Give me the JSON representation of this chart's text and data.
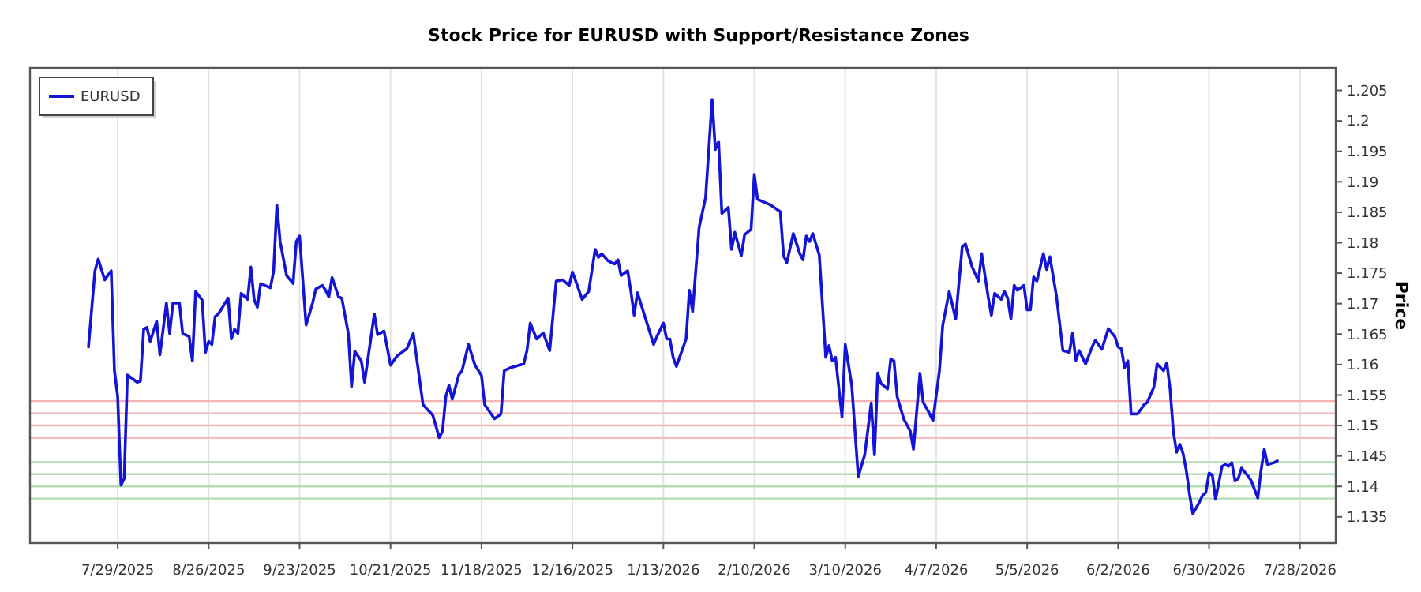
{
  "chart_data": {
    "type": "line",
    "title": "Stock Price for EURUSD with Support/Resistance Zones",
    "ylabel": "Price",
    "x": [
      "2025-07-20",
      "2025-07-22",
      "2025-07-23",
      "2025-07-25",
      "2025-07-27",
      "2025-07-28",
      "2025-07-29",
      "2025-07-30",
      "2025-07-31",
      "2025-08-01",
      "2025-08-04",
      "2025-08-05",
      "2025-08-06",
      "2025-08-07",
      "2025-08-08",
      "2025-08-10",
      "2025-08-11",
      "2025-08-13",
      "2025-08-14",
      "2025-08-15",
      "2025-08-17",
      "2025-08-18",
      "2025-08-20",
      "2025-08-21",
      "2025-08-22",
      "2025-08-24",
      "2025-08-25",
      "2025-08-26",
      "2025-08-27",
      "2025-08-28",
      "2025-08-29",
      "2025-09-01",
      "2025-09-02",
      "2025-09-03",
      "2025-09-04",
      "2025-09-05",
      "2025-09-07",
      "2025-09-08",
      "2025-09-09",
      "2025-09-10",
      "2025-09-11",
      "2025-09-14",
      "2025-09-15",
      "2025-09-16",
      "2025-09-17",
      "2025-09-19",
      "2025-09-21",
      "2025-09-22",
      "2025-09-23",
      "2025-09-25",
      "2025-09-27",
      "2025-09-28",
      "2025-09-30",
      "2025-10-01",
      "2025-10-02",
      "2025-10-03",
      "2025-10-05",
      "2025-10-06",
      "2025-10-08",
      "2025-10-09",
      "2025-10-10",
      "2025-10-12",
      "2025-10-13",
      "2025-10-16",
      "2025-10-17",
      "2025-10-19",
      "2025-10-21",
      "2025-10-23",
      "2025-10-26",
      "2025-10-28",
      "2025-10-31",
      "2025-11-03",
      "2025-11-05",
      "2025-11-06",
      "2025-11-07",
      "2025-11-08",
      "2025-11-09",
      "2025-11-11",
      "2025-11-12",
      "2025-11-14",
      "2025-11-15",
      "2025-11-16",
      "2025-11-18",
      "2025-11-19",
      "2025-11-22",
      "2025-11-24",
      "2025-11-25",
      "2025-11-27",
      "2025-12-01",
      "2025-12-02",
      "2025-12-03",
      "2025-12-05",
      "2025-12-07",
      "2025-12-09",
      "2025-12-11",
      "2025-12-13",
      "2025-12-15",
      "2025-12-16",
      "2025-12-17",
      "2025-12-19",
      "2025-12-21",
      "2025-12-23",
      "2025-12-24",
      "2025-12-25",
      "2025-12-27",
      "2025-12-29",
      "2025-12-30",
      "2025-12-31",
      "2026-01-02",
      "2026-01-03",
      "2026-01-04",
      "2026-01-05",
      "2026-01-07",
      "2026-01-10",
      "2026-01-11",
      "2026-01-13",
      "2026-01-14",
      "2026-01-15",
      "2026-01-16",
      "2026-01-17",
      "2026-01-20",
      "2026-01-21",
      "2026-01-22",
      "2026-01-24",
      "2026-01-26",
      "2026-01-28",
      "2026-01-29",
      "2026-01-30",
      "2026-01-31",
      "2026-02-02",
      "2026-02-03",
      "2026-02-04",
      "2026-02-06",
      "2026-02-07",
      "2026-02-09",
      "2026-02-10",
      "2026-02-11",
      "2026-02-15",
      "2026-02-18",
      "2026-02-19",
      "2026-02-20",
      "2026-02-22",
      "2026-02-24",
      "2026-02-25",
      "2026-02-26",
      "2026-02-27",
      "2026-02-28",
      "2026-03-02",
      "2026-03-04",
      "2026-03-05",
      "2026-03-06",
      "2026-03-07",
      "2026-03-09",
      "2026-03-10",
      "2026-03-12",
      "2026-03-14",
      "2026-03-16",
      "2026-03-18",
      "2026-03-19",
      "2026-03-20",
      "2026-03-21",
      "2026-03-23",
      "2026-03-24",
      "2026-03-25",
      "2026-03-26",
      "2026-03-28",
      "2026-03-30",
      "2026-03-31",
      "2026-04-02",
      "2026-04-03",
      "2026-04-05",
      "2026-04-06",
      "2026-04-08",
      "2026-04-09",
      "2026-04-11",
      "2026-04-13",
      "2026-04-15",
      "2026-04-16",
      "2026-04-18",
      "2026-04-20",
      "2026-04-21",
      "2026-04-23",
      "2026-04-24",
      "2026-04-25",
      "2026-04-27",
      "2026-04-28",
      "2026-04-29",
      "2026-04-30",
      "2026-05-01",
      "2026-05-02",
      "2026-05-04",
      "2026-05-05",
      "2026-05-06",
      "2026-05-07",
      "2026-05-08",
      "2026-05-10",
      "2026-05-11",
      "2026-05-12",
      "2026-05-14",
      "2026-05-16",
      "2026-05-18",
      "2026-05-19",
      "2026-05-20",
      "2026-05-21",
      "2026-05-23",
      "2026-05-25",
      "2026-05-26",
      "2026-05-28",
      "2026-05-30",
      "2026-06-01",
      "2026-06-02",
      "2026-06-03",
      "2026-06-04",
      "2026-06-05",
      "2026-06-06",
      "2026-06-08",
      "2026-06-10",
      "2026-06-11",
      "2026-06-13",
      "2026-06-14",
      "2026-06-16",
      "2026-06-17",
      "2026-06-18",
      "2026-06-19",
      "2026-06-20",
      "2026-06-21",
      "2026-06-22",
      "2026-06-23",
      "2026-06-24",
      "2026-06-25",
      "2026-06-27",
      "2026-06-28",
      "2026-06-29",
      "2026-06-30",
      "2026-07-01",
      "2026-07-02",
      "2026-07-04",
      "2026-07-05",
      "2026-07-06",
      "2026-07-07",
      "2026-07-08",
      "2026-07-09",
      "2026-07-10",
      "2026-07-12",
      "2026-07-13",
      "2026-07-15",
      "2026-07-16",
      "2026-07-17",
      "2026-07-18",
      "2026-07-20",
      "2026-07-21"
    ],
    "series": [
      {
        "name": "EURUSD",
        "color": "#1414d6",
        "values": [
          1.1629,
          1.1754,
          1.1773,
          1.1739,
          1.1754,
          1.159,
          1.1547,
          1.1402,
          1.1413,
          1.1583,
          1.1571,
          1.1573,
          1.1658,
          1.1661,
          1.1638,
          1.1671,
          1.1616,
          1.1701,
          1.1651,
          1.1701,
          1.1701,
          1.1651,
          1.1646,
          1.1606,
          1.172,
          1.1706,
          1.162,
          1.1638,
          1.1633,
          1.1679,
          1.1683,
          1.1709,
          1.1642,
          1.1658,
          1.1651,
          1.1717,
          1.1707,
          1.176,
          1.1707,
          1.1694,
          1.1733,
          1.1726,
          1.1753,
          1.1862,
          1.1802,
          1.1746,
          1.1733,
          1.1802,
          1.1811,
          1.1665,
          1.1701,
          1.1724,
          1.173,
          1.1722,
          1.1711,
          1.1743,
          1.1711,
          1.1709,
          1.1651,
          1.1564,
          1.1622,
          1.1606,
          1.1571,
          1.1683,
          1.1649,
          1.1655,
          1.1599,
          1.1614,
          1.1626,
          1.1651,
          1.1534,
          1.1517,
          1.148,
          1.1491,
          1.1547,
          1.1566,
          1.1543,
          1.1583,
          1.159,
          1.1633,
          1.1616,
          1.1599,
          1.1582,
          1.1534,
          1.1511,
          1.1519,
          1.159,
          1.1595,
          1.1601,
          1.1623,
          1.1668,
          1.1642,
          1.1652,
          1.1623,
          1.1737,
          1.1739,
          1.173,
          1.1752,
          1.1737,
          1.1707,
          1.172,
          1.1789,
          1.1776,
          1.1782,
          1.177,
          1.1765,
          1.1772,
          1.1746,
          1.1754,
          1.172,
          1.1681,
          1.1718,
          1.1684,
          1.1633,
          1.1646,
          1.1668,
          1.1642,
          1.1642,
          1.1612,
          1.1597,
          1.1642,
          1.1722,
          1.1687,
          1.1825,
          1.1874,
          1.2035,
          1.1953,
          1.1966,
          1.1848,
          1.1858,
          1.1789,
          1.1817,
          1.1779,
          1.1813,
          1.1822,
          1.1912,
          1.1871,
          1.1862,
          1.1851,
          1.1779,
          1.1767,
          1.1815,
          1.1782,
          1.1772,
          1.1811,
          1.1802,
          1.1815,
          1.178,
          1.1612,
          1.1631,
          1.1606,
          1.1612,
          1.1514,
          1.1633,
          1.1566,
          1.1416,
          1.1452,
          1.1537,
          1.1452,
          1.1586,
          1.1569,
          1.156,
          1.1609,
          1.1606,
          1.1547,
          1.1511,
          1.1491,
          1.1461,
          1.1586,
          1.1538,
          1.1519,
          1.1508,
          1.159,
          1.1664,
          1.172,
          1.1675,
          1.1793,
          1.1798,
          1.1761,
          1.1737,
          1.1782,
          1.1711,
          1.1681,
          1.1717,
          1.1707,
          1.172,
          1.1709,
          1.1675,
          1.173,
          1.1722,
          1.173,
          1.169,
          1.169,
          1.1744,
          1.1737,
          1.1782,
          1.1756,
          1.1777,
          1.1713,
          1.1623,
          1.162,
          1.1652,
          1.1607,
          1.1623,
          1.1601,
          1.1629,
          1.164,
          1.1625,
          1.1659,
          1.1646,
          1.1629,
          1.1626,
          1.1595,
          1.1606,
          1.1519,
          1.1519,
          1.1534,
          1.1538,
          1.1563,
          1.1601,
          1.159,
          1.1603,
          1.156,
          1.1491,
          1.1456,
          1.1469,
          1.1454,
          1.1426,
          1.1387,
          1.1355,
          1.1374,
          1.1385,
          1.139,
          1.1422,
          1.1419,
          1.1379,
          1.1433,
          1.1436,
          1.1433,
          1.1439,
          1.1409,
          1.1413,
          1.143,
          1.1417,
          1.1409,
          1.1381,
          1.1426,
          1.1461,
          1.1436,
          1.1439,
          1.1442
        ]
      }
    ],
    "xlim": [
      "2025-07-02",
      "2026-08-08"
    ],
    "xticks": [
      {
        "value": "2025-07-29",
        "label": "7/29/2025"
      },
      {
        "value": "2025-08-26",
        "label": "8/26/2025"
      },
      {
        "value": "2025-09-23",
        "label": "9/23/2025"
      },
      {
        "value": "2025-10-21",
        "label": "10/21/2025"
      },
      {
        "value": "2025-11-18",
        "label": "11/18/2025"
      },
      {
        "value": "2025-12-16",
        "label": "12/16/2025"
      },
      {
        "value": "2026-01-13",
        "label": "1/13/2026"
      },
      {
        "value": "2026-02-10",
        "label": "2/10/2026"
      },
      {
        "value": "2026-03-10",
        "label": "3/10/2026"
      },
      {
        "value": "2026-04-07",
        "label": "4/7/2026"
      },
      {
        "value": "2026-05-05",
        "label": "5/5/2026"
      },
      {
        "value": "2026-06-02",
        "label": "6/2/2026"
      },
      {
        "value": "2026-06-30",
        "label": "6/30/2026"
      },
      {
        "value": "2026-07-28",
        "label": "7/28/2026"
      }
    ],
    "ylim": [
      1.1307,
      1.2087
    ],
    "yticks": [
      1.135,
      1.14,
      1.145,
      1.15,
      1.155,
      1.16,
      1.165,
      1.17,
      1.175,
      1.18,
      1.185,
      1.19,
      1.195,
      1.2,
      1.205
    ],
    "ref_lines": [
      {
        "axis": "y",
        "value": 1.154,
        "color": "#f4b4b4"
      },
      {
        "axis": "y",
        "value": 1.152,
        "color": "#f4b4b4"
      },
      {
        "axis": "y",
        "value": 1.15,
        "color": "#f4b4b4"
      },
      {
        "axis": "y",
        "value": 1.148,
        "color": "#f4b4b4"
      },
      {
        "axis": "y",
        "value": 1.144,
        "color": "#b4dcb4"
      },
      {
        "axis": "y",
        "value": 1.142,
        "color": "#b4dcb4"
      },
      {
        "axis": "y",
        "value": 1.14,
        "color": "#b4dcb4"
      },
      {
        "axis": "y",
        "value": 1.138,
        "color": "#b4dcb4"
      }
    ],
    "grid": "x",
    "legend": "top left",
    "line_style": "solid",
    "marker": "none"
  }
}
